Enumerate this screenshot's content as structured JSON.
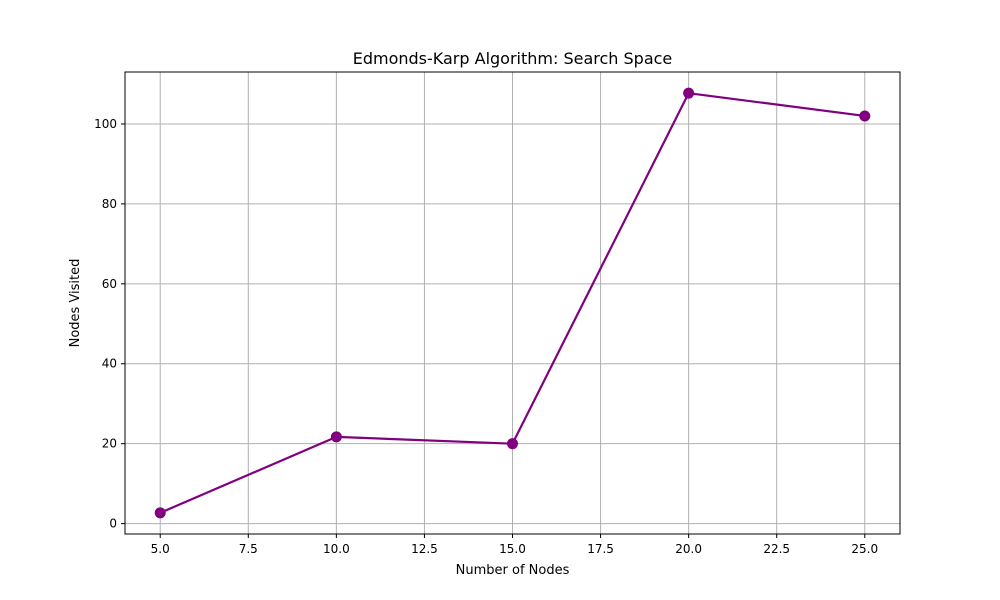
{
  "chart_data": {
    "type": "line",
    "title": "Edmonds-Karp Algorithm: Search Space",
    "xlabel": "Number of Nodes",
    "ylabel": "Nodes Visited",
    "x": [
      5,
      10,
      15,
      20,
      25
    ],
    "series": [
      {
        "values": [
          2.7,
          21.7,
          20.0,
          107.7,
          102.0
        ],
        "color": "#800080",
        "marker": "circle"
      }
    ],
    "xlim": [
      4,
      26
    ],
    "ylim": [
      -2.6,
      113.0
    ],
    "xticks": [
      5.0,
      7.5,
      10.0,
      12.5,
      15.0,
      17.5,
      20.0,
      22.5,
      25.0
    ],
    "xtick_labels": [
      "5.0",
      "7.5",
      "10.0",
      "12.5",
      "15.0",
      "17.5",
      "20.0",
      "22.5",
      "25.0"
    ],
    "yticks": [
      0,
      20,
      40,
      60,
      80,
      100
    ],
    "ytick_labels": [
      "0",
      "20",
      "40",
      "60",
      "80",
      "100"
    ],
    "grid": true
  }
}
